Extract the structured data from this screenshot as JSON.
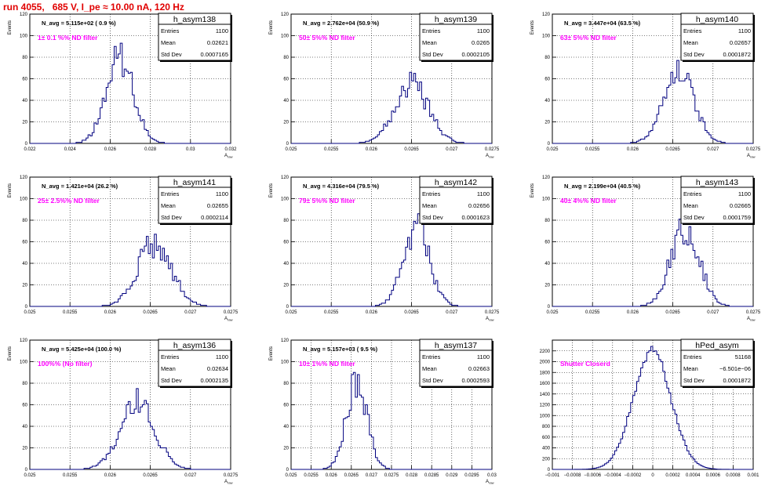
{
  "page": {
    "title": "run 4055,   685 V, I_pe ≈ 10.00 nA, 120 Hz"
  },
  "colors": {
    "histogram": "#00007f",
    "title": "#e00000",
    "annotation": "#ff00ff",
    "grid": "#000000"
  },
  "chart_data": [
    {
      "type": "histogram",
      "name": "h_asym138",
      "info": "N_avg = 5.115e+02 ( 0.9 %)",
      "note": "1± 0.1 %% ND filter",
      "stats": {
        "Entries": "1100",
        "Mean": "0.02621",
        "Std Dev": "0.0007165"
      },
      "xlabel": "A_raw",
      "ylabel": "Events",
      "xlim": [
        0.0215,
        0.032
      ],
      "ylim": [
        0,
        120
      ],
      "xticks": [
        "0.022",
        "0.024",
        "0.026",
        "0.028",
        "0.03",
        "0.032"
      ],
      "yticks": [
        "0",
        "20",
        "40",
        "60",
        "80",
        "100",
        "120"
      ],
      "grid": true,
      "mean": 0.02621,
      "sigma": 0.0007165,
      "peak": 80
    },
    {
      "type": "histogram",
      "name": "h_asym139",
      "info": "N_avg = 2.762e+04 (50.9 %)",
      "note": "50± 5%% ND filter",
      "stats": {
        "Entries": "1100",
        "Mean": "0.0265",
        "Std Dev": "0.0002105"
      },
      "xlabel": "A_raw",
      "ylabel": "Events",
      "xlim": [
        0.025,
        0.0275
      ],
      "ylim": [
        0,
        120
      ],
      "xticks": [
        "0.025",
        "0.0255",
        "0.026",
        "0.0265",
        "0.027",
        "0.0275"
      ],
      "yticks": [
        "0",
        "20",
        "40",
        "60",
        "80",
        "100",
        "120"
      ],
      "grid": true,
      "mean": 0.0265,
      "sigma": 0.0002105,
      "peak": 55
    },
    {
      "type": "histogram",
      "name": "h_asym140",
      "info": "N_avg = 3.447e+04 (63.5 %)",
      "note": "63± 5%% ND filter",
      "stats": {
        "Entries": "1100",
        "Mean": "0.02657",
        "Std Dev": "0.0001872"
      },
      "xlabel": "A_raw",
      "ylabel": "Events",
      "xlim": [
        0.025,
        0.0275
      ],
      "ylim": [
        0,
        120
      ],
      "xticks": [
        "0.025",
        "0.0255",
        "0.026",
        "0.0265",
        "0.027",
        "0.0275"
      ],
      "yticks": [
        "0",
        "20",
        "40",
        "60",
        "80",
        "100",
        "120"
      ],
      "grid": true,
      "mean": 0.02657,
      "sigma": 0.0001872,
      "peak": 70
    },
    {
      "type": "histogram",
      "name": "h_asym141",
      "info": "N_avg = 1.421e+04 (26.2 %)",
      "note": "25± 2.5%% ND filter",
      "stats": {
        "Entries": "1100",
        "Mean": "0.02655",
        "Std Dev": "0.0002114"
      },
      "xlabel": "A_raw",
      "ylabel": "Events",
      "xlim": [
        0.025,
        0.0275
      ],
      "ylim": [
        0,
        120
      ],
      "xticks": [
        "0.025",
        "0.0255",
        "0.026",
        "0.0265",
        "0.027",
        "0.0275"
      ],
      "yticks": [
        "0",
        "20",
        "40",
        "60",
        "80",
        "100",
        "120"
      ],
      "grid": true,
      "mean": 0.02655,
      "sigma": 0.0002114,
      "peak": 58
    },
    {
      "type": "histogram",
      "name": "h_asym142",
      "info": "N_avg = 4.316e+04 (79.5 %)",
      "note": "79± 5%% ND filter",
      "stats": {
        "Entries": "1100",
        "Mean": "0.02656",
        "Std Dev": "0.0001623"
      },
      "xlabel": "A_raw",
      "ylabel": "Events",
      "xlim": [
        0.025,
        0.0275
      ],
      "ylim": [
        0,
        120
      ],
      "xticks": [
        "0.025",
        "0.0255",
        "0.026",
        "0.0265",
        "0.027",
        "0.0275"
      ],
      "yticks": [
        "0",
        "20",
        "40",
        "60",
        "80",
        "100",
        "120"
      ],
      "grid": true,
      "mean": 0.02656,
      "sigma": 0.0001623,
      "peak": 73
    },
    {
      "type": "histogram",
      "name": "h_asym143",
      "info": "N_avg = 2.199e+04 (40.5 %)",
      "note": "40± 4%% ND filter",
      "stats": {
        "Entries": "1100",
        "Mean": "0.02665",
        "Std Dev": "0.0001759"
      },
      "xlabel": "A_raw",
      "ylabel": "Events",
      "xlim": [
        0.025,
        0.0275
      ],
      "ylim": [
        0,
        120
      ],
      "xticks": [
        "0.025",
        "0.0255",
        "0.026",
        "0.0265",
        "0.027",
        "0.0275"
      ],
      "yticks": [
        "0",
        "20",
        "40",
        "60",
        "80",
        "100",
        "120"
      ],
      "grid": true,
      "mean": 0.02665,
      "sigma": 0.0001759,
      "peak": 75
    },
    {
      "type": "histogram",
      "name": "h_asym136",
      "info": "N_avg = 5.425e+04 (100.0 %)",
      "note": "100%% (No filter)",
      "stats": {
        "Entries": "1100",
        "Mean": "0.02634",
        "Std Dev": "0.0002135"
      },
      "xlabel": "A_raw",
      "ylabel": "Events",
      "xlim": [
        0.025,
        0.0275
      ],
      "ylim": [
        0,
        120
      ],
      "xticks": [
        "0.025",
        "0.0255",
        "0.026",
        "0.0265",
        "0.027",
        "0.0275"
      ],
      "yticks": [
        "0",
        "20",
        "40",
        "60",
        "80",
        "100",
        "120"
      ],
      "grid": true,
      "mean": 0.02634,
      "sigma": 0.0002135,
      "peak": 64
    },
    {
      "type": "histogram",
      "name": "h_asym137",
      "info": "N_avg = 5.157e+03 ( 9.5 %)",
      "note": "10± 1%% ND filter",
      "stats": {
        "Entries": "1100",
        "Mean": "0.02663",
        "Std Dev": "0.0002593"
      },
      "xlabel": "A_raw",
      "ylabel": "Events",
      "xlim": [
        0.025,
        0.03
      ],
      "ylim": [
        0,
        120
      ],
      "xticks": [
        "0.025",
        "0.0255",
        "0.026",
        "0.0265",
        "0.027",
        "0.0275",
        "0.028",
        "0.0285",
        "0.029",
        "0.0295",
        "0.03"
      ],
      "yticks": [
        "0",
        "20",
        "40",
        "60",
        "80",
        "100",
        "120"
      ],
      "grid": true,
      "mean": 0.02663,
      "sigma": 0.0002593,
      "peak": 80
    },
    {
      "type": "histogram",
      "name": "hPed_asym",
      "info": "",
      "note": "Shutter Closerd",
      "stats": {
        "Entries": "51168",
        "Mean": "−6.501e−06",
        "Std Dev": "0.0001872"
      },
      "xlabel": "",
      "ylabel": "",
      "xlim": [
        -0.001,
        0.001
      ],
      "ylim": [
        0,
        2400
      ],
      "xticks": [
        "−0.001",
        "−0.0008",
        "−0.0006",
        "−0.0004",
        "−0.0002",
        "0",
        "0.0002",
        "0.0004",
        "0.0006",
        "0.0008",
        "0.001"
      ],
      "yticks": [
        "0",
        "200",
        "400",
        "600",
        "800",
        "1000",
        "1200",
        "1400",
        "1600",
        "1800",
        "2000",
        "2200"
      ],
      "grid": true,
      "mean": -6.501e-06,
      "sigma": 0.0001872,
      "peak": 2200
    }
  ]
}
